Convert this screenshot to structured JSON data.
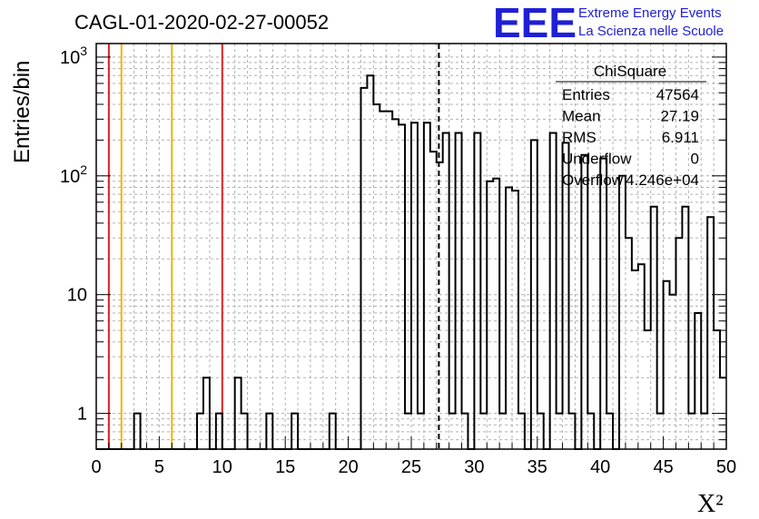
{
  "chart_data": {
    "type": "histogram",
    "title": "CAGL-01-2020-02-27-00052",
    "xlabel": "X²",
    "ylabel": "Entries/bin",
    "xlim": [
      0,
      50
    ],
    "ylim": [
      0.5,
      1300
    ],
    "yscale": "log",
    "grid": true,
    "bin_width": 0.5,
    "x_ticks": [
      "0",
      "5",
      "10",
      "15",
      "20",
      "25",
      "30",
      "35",
      "40",
      "45",
      "50"
    ],
    "y_ticks": [
      {
        "value": 1,
        "label": "1",
        "sup": ""
      },
      {
        "value": 10,
        "label": "10",
        "sup": ""
      },
      {
        "value": 100,
        "label": "10",
        "sup": "2"
      },
      {
        "value": 1000,
        "label": "10",
        "sup": "3"
      }
    ],
    "bins": [
      [
        3,
        1
      ],
      [
        8,
        1
      ],
      [
        8.5,
        2
      ],
      [
        9.5,
        1
      ],
      [
        11,
        2
      ],
      [
        11.5,
        1
      ],
      [
        13.5,
        1
      ],
      [
        15.5,
        1
      ],
      [
        18.5,
        1
      ],
      [
        21,
        550
      ],
      [
        21.5,
        700
      ],
      [
        22,
        400
      ],
      [
        22.5,
        350
      ],
      [
        23,
        350
      ],
      [
        23.5,
        300
      ],
      [
        24,
        270
      ],
      [
        24.5,
        1
      ],
      [
        25,
        280
      ],
      [
        25.5,
        1
      ],
      [
        26,
        280
      ],
      [
        26.5,
        160
      ],
      [
        27,
        130
      ],
      [
        27.5,
        230
      ],
      [
        28,
        1
      ],
      [
        28.5,
        230
      ],
      [
        29,
        1
      ],
      [
        30,
        230
      ],
      [
        30.5,
        1
      ],
      [
        31,
        90
      ],
      [
        31.5,
        95
      ],
      [
        32,
        1
      ],
      [
        32.5,
        80
      ],
      [
        33,
        75
      ],
      [
        33.5,
        1
      ],
      [
        34.5,
        200
      ],
      [
        35,
        1
      ],
      [
        36,
        230
      ],
      [
        36.5,
        1
      ],
      [
        37,
        190
      ],
      [
        37.5,
        1
      ],
      [
        38.5,
        150
      ],
      [
        39,
        1
      ],
      [
        40,
        140
      ],
      [
        40.5,
        1
      ],
      [
        41.5,
        100
      ],
      [
        42,
        30
      ],
      [
        42.5,
        16
      ],
      [
        43,
        18
      ],
      [
        43.5,
        5
      ],
      [
        44,
        55
      ],
      [
        44.5,
        1
      ],
      [
        45,
        13
      ],
      [
        45.5,
        10
      ],
      [
        46,
        30
      ],
      [
        46.5,
        55
      ],
      [
        47,
        1
      ],
      [
        47.5,
        7
      ],
      [
        48,
        1
      ],
      [
        48.5,
        45
      ],
      [
        49,
        5
      ],
      [
        49.5,
        2
      ]
    ],
    "markers": [
      {
        "x": 1,
        "color": "#e02020"
      },
      {
        "x": 2,
        "color": "#f0b400"
      },
      {
        "x": 6,
        "color": "#f0b400"
      },
      {
        "x": 10,
        "color": "#e02020"
      },
      {
        "x": 27.19,
        "color": "#000000",
        "dashed": true
      }
    ],
    "stats": {
      "name": "ChiSquare",
      "rows": [
        {
          "label": "Entries",
          "value": "47564"
        },
        {
          "label": "Mean",
          "value": "27.19"
        },
        {
          "label": "RMS",
          "value": "6.911"
        },
        {
          "label": "Underflow",
          "value": "0"
        },
        {
          "label": "Overflow",
          "value": "4.246e+04"
        }
      ]
    }
  },
  "logo": {
    "mark": "EEE",
    "line1": "Extreme Energy Events",
    "line2": "La Scienza nelle Scuole",
    "color": "#1f1fd6"
  }
}
